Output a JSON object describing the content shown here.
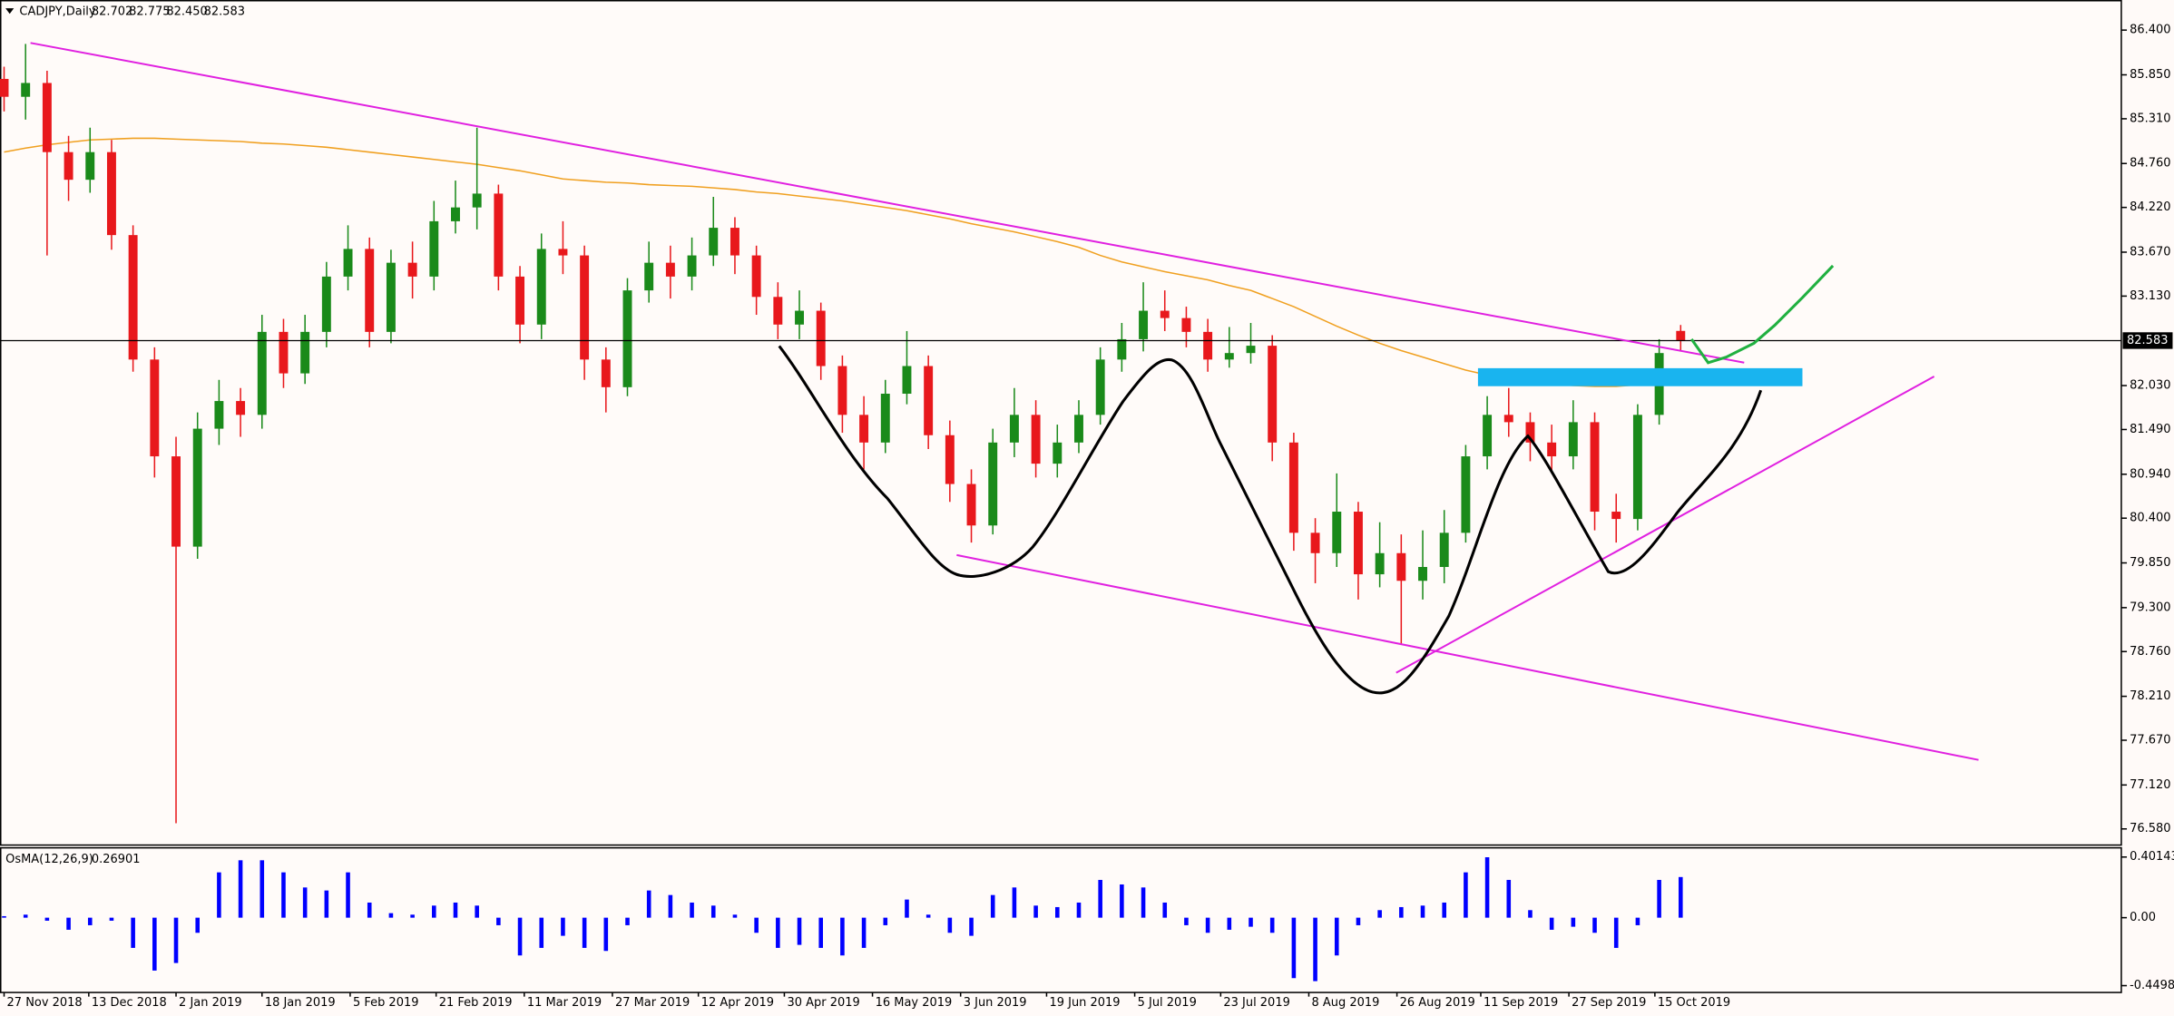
{
  "chart_data": {
    "type": "candlestick",
    "symbol": "CADJPY,Daily",
    "ohlc_labels": [
      "82.702",
      "82.775",
      "82.450",
      "82.583"
    ],
    "up_color": "#1a8a1a",
    "down_color": "#e8181c",
    "open": [
      85.8,
      85.58,
      85.75,
      84.9,
      84.56,
      84.9,
      83.88,
      82.35,
      81.16,
      80.05,
      81.5,
      81.84,
      81.67,
      82.69,
      82.18,
      82.69,
      83.37,
      83.71,
      82.69,
      83.54,
      83.37,
      84.05,
      84.22,
      84.39,
      83.37,
      82.78,
      83.71,
      83.63,
      82.35,
      82.01,
      83.2,
      83.54,
      83.37,
      83.63,
      83.97,
      83.63,
      83.12,
      82.78,
      82.95,
      82.27,
      81.67,
      81.33,
      81.93,
      82.27,
      81.42,
      80.82,
      80.31,
      81.33,
      81.67,
      81.07,
      81.33,
      81.67,
      82.35,
      82.6,
      82.95,
      82.86,
      82.69,
      82.35,
      82.43,
      82.52,
      81.33,
      80.22,
      79.97,
      80.48,
      79.71,
      79.97,
      79.63,
      79.8,
      80.22,
      81.16,
      81.67,
      81.58,
      81.33,
      81.16,
      81.58,
      80.48,
      80.39,
      81.67,
      82.702
    ],
    "high": [
      85.95,
      86.23,
      85.9,
      85.1,
      85.2,
      85.05,
      84.0,
      82.5,
      81.4,
      81.7,
      82.1,
      82.0,
      82.9,
      82.85,
      82.9,
      83.55,
      84.0,
      83.85,
      83.7,
      83.8,
      84.3,
      84.55,
      85.2,
      84.5,
      83.5,
      83.9,
      84.05,
      83.75,
      82.5,
      83.35,
      83.8,
      83.75,
      83.85,
      84.35,
      84.1,
      83.75,
      83.3,
      83.2,
      83.05,
      82.4,
      81.9,
      82.1,
      82.7,
      82.4,
      81.6,
      81.0,
      81.5,
      82.0,
      81.85,
      81.55,
      81.85,
      82.5,
      82.8,
      83.3,
      83.2,
      83.0,
      82.85,
      82.75,
      82.8,
      82.65,
      81.45,
      80.4,
      80.95,
      80.6,
      80.35,
      80.2,
      80.25,
      80.5,
      81.3,
      81.9,
      82.0,
      81.7,
      81.55,
      81.85,
      81.7,
      80.7,
      81.8,
      82.6,
      82.775
    ],
    "low": [
      85.4,
      85.3,
      83.63,
      84.3,
      84.4,
      83.7,
      82.2,
      80.9,
      76.65,
      79.9,
      81.3,
      81.4,
      81.5,
      82.0,
      82.05,
      82.5,
      83.2,
      82.5,
      82.55,
      83.1,
      83.2,
      83.9,
      83.95,
      83.2,
      82.55,
      82.6,
      83.4,
      82.1,
      81.7,
      81.9,
      83.05,
      83.1,
      83.2,
      83.5,
      83.4,
      82.9,
      82.6,
      82.6,
      82.1,
      81.45,
      81.0,
      81.2,
      81.8,
      81.25,
      80.6,
      80.1,
      80.2,
      81.15,
      80.9,
      80.9,
      81.2,
      81.55,
      82.2,
      82.45,
      82.7,
      82.5,
      82.2,
      82.25,
      82.3,
      81.1,
      80.0,
      79.6,
      79.8,
      79.4,
      79.55,
      78.85,
      79.4,
      79.6,
      80.1,
      81.0,
      81.4,
      81.1,
      80.95,
      81.0,
      80.25,
      80.1,
      80.25,
      81.55,
      82.45
    ],
    "close": [
      85.58,
      85.75,
      84.9,
      84.56,
      84.9,
      83.88,
      82.35,
      81.16,
      80.05,
      81.5,
      81.84,
      81.67,
      82.69,
      82.18,
      82.69,
      83.37,
      83.71,
      82.69,
      83.54,
      83.37,
      84.05,
      84.22,
      84.39,
      83.37,
      82.78,
      83.71,
      83.63,
      82.35,
      82.01,
      83.2,
      83.54,
      83.37,
      83.63,
      83.97,
      83.63,
      83.12,
      82.78,
      82.95,
      82.27,
      81.67,
      81.33,
      81.93,
      82.27,
      81.42,
      80.82,
      80.31,
      81.33,
      81.67,
      81.07,
      81.33,
      81.67,
      82.35,
      82.6,
      82.95,
      82.86,
      82.69,
      82.35,
      82.43,
      82.52,
      81.33,
      80.22,
      79.97,
      80.48,
      79.71,
      79.97,
      79.63,
      79.8,
      80.22,
      81.16,
      81.67,
      81.58,
      81.33,
      81.16,
      81.58,
      80.48,
      80.39,
      81.67,
      82.43,
      82.583
    ],
    "ma": {
      "color": "#f0a020",
      "values": [
        84.9,
        84.95,
        84.99,
        85.02,
        85.05,
        85.06,
        85.07,
        85.07,
        85.06,
        85.05,
        85.04,
        85.03,
        85.01,
        85.0,
        84.98,
        84.96,
        84.93,
        84.9,
        84.87,
        84.84,
        84.81,
        84.78,
        84.75,
        84.71,
        84.67,
        84.62,
        84.57,
        84.55,
        84.53,
        84.52,
        84.5,
        84.49,
        84.48,
        84.46,
        84.44,
        84.41,
        84.39,
        84.36,
        84.33,
        84.3,
        84.26,
        84.22,
        84.18,
        84.13,
        84.08,
        84.02,
        83.97,
        83.92,
        83.86,
        83.8,
        83.73,
        83.63,
        83.55,
        83.49,
        83.43,
        83.38,
        83.33,
        83.26,
        83.2,
        83.1,
        83.0,
        82.88,
        82.76,
        82.65,
        82.55,
        82.46,
        82.38,
        82.3,
        82.22,
        82.16,
        82.1,
        82.07,
        82.05,
        82.03,
        82.02,
        82.02,
        82.04,
        82.07,
        82.09
      ]
    },
    "xlim": [
      -0.19,
      98.5
    ],
    "xticks": [
      {
        "value": 0,
        "label": "27 Nov 2018"
      },
      {
        "value": 3.94,
        "label": "13 Dec 2018"
      },
      {
        "value": 8.0,
        "label": "2 Jan 2019"
      },
      {
        "value": 12.0,
        "label": "18 Jan 2019"
      },
      {
        "value": 16.1,
        "label": "5 Feb 2019"
      },
      {
        "value": 20.1,
        "label": "21 Feb 2019"
      },
      {
        "value": 24.2,
        "label": "11 Mar 2019"
      },
      {
        "value": 28.3,
        "label": "27 Mar 2019"
      },
      {
        "value": 32.3,
        "label": "12 Apr 2019"
      },
      {
        "value": 36.3,
        "label": "30 Apr 2019"
      },
      {
        "value": 40.4,
        "label": "16 May 2019"
      },
      {
        "value": 44.5,
        "label": "3 Jun 2019"
      },
      {
        "value": 48.5,
        "label": "19 Jun 2019"
      },
      {
        "value": 52.6,
        "label": "5 Jul 2019"
      },
      {
        "value": 56.6,
        "label": "23 Jul 2019"
      },
      {
        "value": 60.7,
        "label": "8 Aug 2019"
      },
      {
        "value": 64.8,
        "label": "26 Aug 2019"
      },
      {
        "value": 68.7,
        "label": "11 Sep 2019"
      },
      {
        "value": 72.8,
        "label": "27 Sep 2019"
      },
      {
        "value": 76.8,
        "label": "15 Oct 2019"
      }
    ],
    "ylim": [
      76.39,
      86.77
    ],
    "yticks": [
      {
        "value": 86.4,
        "label": "86.400"
      },
      {
        "value": 85.85,
        "label": "85.850"
      },
      {
        "value": 85.31,
        "label": "85.310"
      },
      {
        "value": 84.76,
        "label": "84.760"
      },
      {
        "value": 84.22,
        "label": "84.220"
      },
      {
        "value": 83.67,
        "label": "83.670"
      },
      {
        "value": 83.13,
        "label": "83.130"
      },
      {
        "value": 82.03,
        "label": "82.030"
      },
      {
        "value": 81.49,
        "label": "81.490"
      },
      {
        "value": 80.94,
        "label": "80.940"
      },
      {
        "value": 80.4,
        "label": "80.400"
      },
      {
        "value": 79.85,
        "label": "79.850"
      },
      {
        "value": 79.3,
        "label": "79.300"
      },
      {
        "value": 78.76,
        "label": "78.760"
      },
      {
        "value": 78.21,
        "label": "78.210"
      },
      {
        "value": 77.67,
        "label": "77.670"
      },
      {
        "value": 77.12,
        "label": "77.120"
      },
      {
        "value": 76.58,
        "label": "76.580"
      }
    ],
    "indicator": {
      "name": "OsMA(12,26,9)",
      "type": "bar",
      "color": "#0000ff",
      "values": [
        0.01,
        0.02,
        -0.02,
        -0.08,
        -0.05,
        -0.02,
        -0.2,
        -0.35,
        -0.3,
        -0.1,
        0.3,
        0.38,
        0.38,
        0.3,
        0.2,
        0.18,
        0.3,
        0.1,
        0.03,
        0.02,
        0.08,
        0.1,
        0.08,
        -0.05,
        -0.25,
        -0.2,
        -0.12,
        -0.2,
        -0.22,
        -0.05,
        0.18,
        0.15,
        0.1,
        0.08,
        0.02,
        -0.1,
        -0.2,
        -0.18,
        -0.2,
        -0.25,
        -0.2,
        -0.05,
        0.12,
        0.02,
        -0.1,
        -0.12,
        0.15,
        0.2,
        0.08,
        0.07,
        0.1,
        0.25,
        0.22,
        0.2,
        0.1,
        -0.05,
        -0.1,
        -0.08,
        -0.06,
        -0.1,
        -0.4,
        -0.42,
        -0.25,
        -0.05,
        0.05,
        0.07,
        0.08,
        0.1,
        0.3,
        0.4,
        0.25,
        0.05,
        -0.08,
        -0.06,
        -0.1,
        -0.2,
        -0.05,
        0.25,
        0.26901
      ],
      "ylim": [
        -0.495,
        0.467
      ],
      "yticks": [
        0.40143,
        {
          "value": 0,
          "label": "0.00"
        },
        -0.4498
      ]
    }
  }
}
